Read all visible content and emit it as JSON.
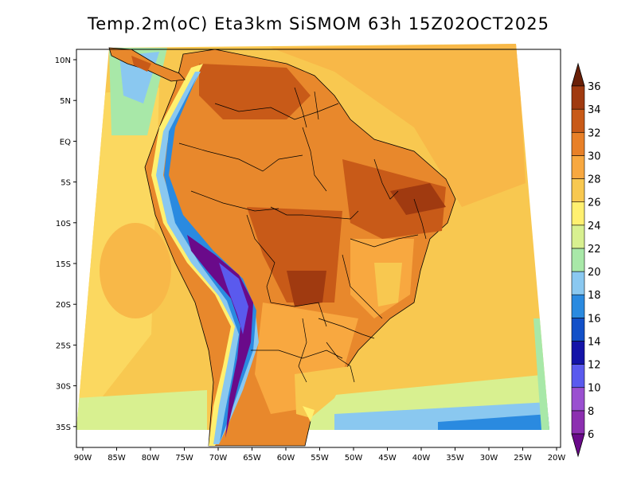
{
  "map": {
    "title": "Temp.2m(oC) Eta3km SiSMOM 63h 15Z02OCT2025",
    "lat_labels": [
      "10N",
      "5N",
      "EQ",
      "5S",
      "10S",
      "15S",
      "20S",
      "25S",
      "30S",
      "35S"
    ],
    "lon_labels": [
      "90W",
      "85W",
      "80W",
      "75W",
      "70W",
      "65W",
      "60W",
      "55W",
      "50W",
      "45W",
      "40W",
      "35W",
      "30W",
      "25W",
      "20W"
    ],
    "colorbar": {
      "labels": [
        "6",
        "8",
        "10",
        "12",
        "14",
        "16",
        "18",
        "20",
        "22",
        "24",
        "26",
        "28",
        "30",
        "32",
        "34",
        "36"
      ],
      "colors": [
        "#6a0a8a",
        "#8c2fb0",
        "#9a50d0",
        "#5a5aee",
        "#1414a8",
        "#1250c8",
        "#2a8ae0",
        "#8ac8f0",
        "#a8e8a8",
        "#d8f090",
        "#fff070",
        "#f8c850",
        "#f8a840",
        "#e88028",
        "#c85a18",
        "#a03a10",
        "#6a2008"
      ]
    }
  }
}
